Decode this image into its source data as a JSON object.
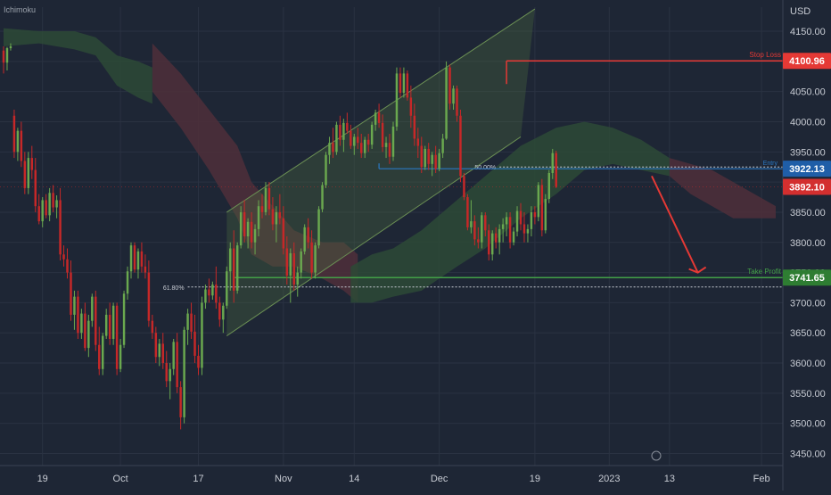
{
  "indicator_label": "Ichimoku",
  "currency": "USD",
  "colors": {
    "background": "#1e2635",
    "bull": "#6aa84f",
    "bear": "#c62828",
    "cloud_bull": "#2d4a36",
    "cloud_bear": "#4f2f3a",
    "channel": "#6a8e54",
    "stop": "#e53935",
    "take": "#43a047",
    "entry": "#2a79c4",
    "arrow": "#e53935",
    "axis_text": "#c8ccd4"
  },
  "chart_data": {
    "type": "candlestick",
    "ylim": [
      3430,
      4190
    ],
    "x_index_range": [
      0,
      219
    ],
    "y_ticks": [
      4150,
      4100,
      4050,
      4000,
      3950,
      3900,
      3850,
      3800,
      3750,
      3700,
      3650,
      3600,
      3550,
      3500,
      3450
    ],
    "x_ticks": [
      {
        "label": "19",
        "i": 11
      },
      {
        "label": "Oct",
        "i": 33
      },
      {
        "label": "17",
        "i": 55
      },
      {
        "label": "Nov",
        "i": 79
      },
      {
        "label": "14",
        "i": 99
      },
      {
        "label": "Dec",
        "i": 123
      },
      {
        "label": "19",
        "i": 150
      },
      {
        "label": "2023",
        "i": 171
      },
      {
        "label": "13",
        "i": 188
      },
      {
        "label": "Feb",
        "i": 214
      }
    ],
    "price_labels": [
      {
        "name": "stop",
        "value": "4100.96",
        "y": 4100.96
      },
      {
        "name": "entry",
        "value": "3922.13",
        "y": 3922.13
      },
      {
        "name": "last",
        "value": "3892.10",
        "y": 3892.1
      },
      {
        "name": "take",
        "value": "3741.65",
        "y": 3741.65
      }
    ],
    "levels": {
      "stop_loss": {
        "label": "Stop Loss",
        "value": 4100.96,
        "i_start": 142,
        "i_end": 214
      },
      "entry": {
        "label": "Entry",
        "value": 3922.13,
        "i_start": 106,
        "i_end": 214
      },
      "take_profit": {
        "label": "Take Profit",
        "value": 3741.65,
        "i_start": 65,
        "i_end": 214
      },
      "fib_618": {
        "label": "61.80%",
        "value": 3726,
        "i_start": 52,
        "i_end": 214
      },
      "fib_50": {
        "label": "50.00%",
        "value": 3925,
        "i_start": 140,
        "i_end": 214
      }
    },
    "channel": {
      "lower": [
        [
          63,
          3645
        ],
        [
          146,
          3975
        ]
      ],
      "upper": [
        [
          63,
          3850
        ],
        [
          150,
          4187
        ]
      ]
    },
    "projection_arrow": {
      "from": [
        183,
        3910
      ],
      "to": [
        196,
        3750
      ]
    },
    "candles": [
      [
        4118,
        4125,
        4080,
        4098
      ],
      [
        4098,
        4124,
        4085,
        4122
      ],
      [
        4122,
        4130,
        4118,
        4125
      ],
      [
        4010,
        4020,
        3940,
        3950
      ],
      [
        3950,
        3990,
        3935,
        3985
      ],
      [
        3985,
        4000,
        3925,
        3935
      ],
      [
        3935,
        3950,
        3880,
        3890
      ],
      [
        3890,
        3950,
        3880,
        3940
      ],
      [
        3940,
        3960,
        3905,
        3920
      ],
      [
        3920,
        3940,
        3850,
        3860
      ],
      [
        3860,
        3880,
        3830,
        3835
      ],
      [
        3835,
        3875,
        3825,
        3870
      ],
      [
        3870,
        3880,
        3840,
        3845
      ],
      [
        3845,
        3890,
        3835,
        3882
      ],
      [
        3882,
        3895,
        3850,
        3858
      ],
      [
        3858,
        3878,
        3840,
        3870
      ],
      [
        3870,
        3890,
        3770,
        3780
      ],
      [
        3780,
        3795,
        3760,
        3772
      ],
      [
        3772,
        3790,
        3740,
        3750
      ],
      [
        3750,
        3770,
        3670,
        3680
      ],
      [
        3680,
        3720,
        3655,
        3710
      ],
      [
        3710,
        3720,
        3640,
        3650
      ],
      [
        3650,
        3690,
        3640,
        3682
      ],
      [
        3682,
        3700,
        3620,
        3625
      ],
      [
        3625,
        3680,
        3610,
        3670
      ],
      [
        3670,
        3715,
        3660,
        3710
      ],
      [
        3710,
        3720,
        3620,
        3630
      ],
      [
        3630,
        3660,
        3580,
        3590
      ],
      [
        3590,
        3650,
        3580,
        3645
      ],
      [
        3645,
        3690,
        3640,
        3680
      ],
      [
        3680,
        3700,
        3630,
        3640
      ],
      [
        3640,
        3700,
        3630,
        3695
      ],
      [
        3695,
        3700,
        3580,
        3590
      ],
      [
        3590,
        3640,
        3585,
        3630
      ],
      [
        3630,
        3720,
        3625,
        3715
      ],
      [
        3715,
        3760,
        3705,
        3752
      ],
      [
        3752,
        3800,
        3740,
        3795
      ],
      [
        3795,
        3800,
        3750,
        3755
      ],
      [
        3755,
        3790,
        3740,
        3785
      ],
      [
        3785,
        3800,
        3750,
        3760
      ],
      [
        3760,
        3780,
        3740,
        3750
      ],
      [
        3750,
        3770,
        3660,
        3670
      ],
      [
        3670,
        3680,
        3640,
        3650
      ],
      [
        3650,
        3660,
        3600,
        3610
      ],
      [
        3610,
        3640,
        3595,
        3632
      ],
      [
        3632,
        3650,
        3590,
        3600
      ],
      [
        3600,
        3620,
        3560,
        3570
      ],
      [
        3570,
        3600,
        3540,
        3590
      ],
      [
        3590,
        3640,
        3580,
        3635
      ],
      [
        3635,
        3650,
        3550,
        3560
      ],
      [
        3560,
        3570,
        3490,
        3510
      ],
      [
        3510,
        3660,
        3500,
        3655
      ],
      [
        3655,
        3690,
        3630,
        3682
      ],
      [
        3682,
        3700,
        3640,
        3652
      ],
      [
        3652,
        3680,
        3600,
        3612
      ],
      [
        3612,
        3630,
        3580,
        3592
      ],
      [
        3592,
        3710,
        3580,
        3700
      ],
      [
        3700,
        3730,
        3690,
        3722
      ],
      [
        3722,
        3740,
        3700,
        3712
      ],
      [
        3712,
        3735,
        3705,
        3730
      ],
      [
        3730,
        3760,
        3690,
        3700
      ],
      [
        3700,
        3710,
        3660,
        3672
      ],
      [
        3672,
        3700,
        3650,
        3695
      ],
      [
        3695,
        3760,
        3690,
        3752
      ],
      [
        3752,
        3800,
        3720,
        3790
      ],
      [
        3790,
        3820,
        3700,
        3720
      ],
      [
        3720,
        3800,
        3715,
        3795
      ],
      [
        3795,
        3860,
        3790,
        3850
      ],
      [
        3850,
        3870,
        3800,
        3810
      ],
      [
        3810,
        3840,
        3790,
        3834
      ],
      [
        3834,
        3850,
        3790,
        3800
      ],
      [
        3800,
        3830,
        3780,
        3822
      ],
      [
        3822,
        3870,
        3810,
        3860
      ],
      [
        3860,
        3880,
        3840,
        3850
      ],
      [
        3850,
        3900,
        3845,
        3890
      ],
      [
        3890,
        3900,
        3845,
        3855
      ],
      [
        3855,
        3875,
        3820,
        3830
      ],
      [
        3830,
        3860,
        3800,
        3850
      ],
      [
        3850,
        3880,
        3830,
        3840
      ],
      [
        3840,
        3860,
        3780,
        3790
      ],
      [
        3790,
        3810,
        3730,
        3745
      ],
      [
        3745,
        3790,
        3700,
        3782
      ],
      [
        3782,
        3800,
        3720,
        3730
      ],
      [
        3730,
        3760,
        3710,
        3750
      ],
      [
        3750,
        3790,
        3740,
        3785
      ],
      [
        3785,
        3830,
        3780,
        3825
      ],
      [
        3825,
        3840,
        3790,
        3800
      ],
      [
        3800,
        3820,
        3740,
        3750
      ],
      [
        3750,
        3800,
        3740,
        3795
      ],
      [
        3795,
        3860,
        3790,
        3855
      ],
      [
        3855,
        3900,
        3850,
        3895
      ],
      [
        3895,
        3950,
        3890,
        3945
      ],
      [
        3945,
        3975,
        3930,
        3965
      ],
      [
        3965,
        3990,
        3940,
        3950
      ],
      [
        3950,
        4000,
        3945,
        3995
      ],
      [
        3995,
        4010,
        3960,
        3970
      ],
      [
        3970,
        4005,
        3950,
        3998
      ],
      [
        3998,
        4015,
        3980,
        3985
      ],
      [
        3985,
        3995,
        3955,
        3960
      ],
      [
        3960,
        3980,
        3945,
        3975
      ],
      [
        3975,
        3990,
        3955,
        3965
      ],
      [
        3965,
        3980,
        3940,
        3948
      ],
      [
        3948,
        3975,
        3940,
        3970
      ],
      [
        3970,
        3980,
        3950,
        3962
      ],
      [
        3962,
        4000,
        3955,
        3995
      ],
      [
        3995,
        4020,
        3985,
        4015
      ],
      [
        4015,
        4030,
        3990,
        3998
      ],
      [
        3998,
        4012,
        3950,
        3958
      ],
      [
        3958,
        3975,
        3940,
        3965
      ],
      [
        3965,
        3980,
        3930,
        3942
      ],
      [
        3942,
        4000,
        3935,
        3992
      ],
      [
        3992,
        4090,
        3985,
        4080
      ],
      [
        4080,
        4090,
        4040,
        4048
      ],
      [
        4048,
        4090,
        4040,
        4080
      ],
      [
        4080,
        4085,
        4035,
        4040
      ],
      [
        4040,
        4060,
        3990,
        4010
      ],
      [
        4010,
        4030,
        3960,
        3972
      ],
      [
        3972,
        3990,
        3940,
        3960
      ],
      [
        3960,
        3975,
        3915,
        3925
      ],
      [
        3925,
        3960,
        3920,
        3955
      ],
      [
        3955,
        3965,
        3920,
        3930
      ],
      [
        3930,
        3950,
        3910,
        3945
      ],
      [
        3945,
        3960,
        3915,
        3922
      ],
      [
        3922,
        3955,
        3918,
        3948
      ],
      [
        3948,
        3980,
        3940,
        3972
      ],
      [
        3972,
        4100,
        3970,
        4090
      ],
      [
        4090,
        4095,
        4020,
        4030
      ],
      [
        4030,
        4060,
        4020,
        4055
      ],
      [
        4055,
        4060,
        4000,
        4010
      ],
      [
        4010,
        4020,
        3900,
        3910
      ],
      [
        3910,
        3915,
        3870,
        3875
      ],
      [
        3875,
        3880,
        3820,
        3825
      ],
      [
        3825,
        3870,
        3815,
        3835
      ],
      [
        3835,
        3845,
        3795,
        3805
      ],
      [
        3805,
        3825,
        3790,
        3800
      ],
      [
        3800,
        3850,
        3790,
        3845
      ],
      [
        3845,
        3850,
        3810,
        3820
      ],
      [
        3820,
        3830,
        3770,
        3780
      ],
      [
        3780,
        3820,
        3770,
        3815
      ],
      [
        3815,
        3825,
        3790,
        3800
      ],
      [
        3800,
        3830,
        3780,
        3822
      ],
      [
        3822,
        3840,
        3800,
        3830
      ],
      [
        3830,
        3850,
        3810,
        3842
      ],
      [
        3842,
        3850,
        3790,
        3800
      ],
      [
        3800,
        3825,
        3795,
        3818
      ],
      [
        3818,
        3860,
        3810,
        3852
      ],
      [
        3852,
        3865,
        3820,
        3830
      ],
      [
        3830,
        3850,
        3800,
        3815
      ],
      [
        3815,
        3830,
        3800,
        3822
      ],
      [
        3822,
        3860,
        3810,
        3850
      ],
      [
        3850,
        3860,
        3830,
        3842
      ],
      [
        3842,
        3900,
        3835,
        3895
      ],
      [
        3895,
        3905,
        3810,
        3820
      ],
      [
        3820,
        3880,
        3815,
        3872
      ],
      [
        3872,
        3920,
        3865,
        3915
      ],
      [
        3915,
        3955,
        3905,
        3948
      ],
      [
        3948,
        3952,
        3890,
        3892
      ]
    ],
    "cloud_segments": [
      {
        "kind": "bear",
        "pts": [
          [
            42,
            4130,
            4050
          ],
          [
            50,
            4080,
            3990
          ],
          [
            58,
            4020,
            3920
          ],
          [
            66,
            3960,
            3840
          ],
          [
            70,
            3900,
            3780
          ],
          [
            76,
            3860,
            3760
          ],
          [
            82,
            3820,
            3760
          ],
          [
            90,
            3800,
            3740
          ],
          [
            96,
            3800,
            3720
          ],
          [
            100,
            3780,
            3700
          ]
        ]
      },
      {
        "kind": "bull",
        "pts": [
          [
            0,
            4155,
            4125
          ],
          [
            10,
            4150,
            4130
          ],
          [
            20,
            4150,
            4120
          ],
          [
            26,
            4140,
            4110
          ],
          [
            32,
            4110,
            4060
          ],
          [
            38,
            4100,
            4040
          ],
          [
            42,
            4090,
            4030
          ]
        ]
      },
      {
        "kind": "bull",
        "pts": [
          [
            98,
            3760,
            3700
          ],
          [
            104,
            3780,
            3700
          ],
          [
            110,
            3790,
            3710
          ],
          [
            118,
            3820,
            3720
          ],
          [
            128,
            3870,
            3760
          ],
          [
            136,
            3910,
            3790
          ],
          [
            146,
            3960,
            3840
          ],
          [
            156,
            3990,
            3880
          ],
          [
            164,
            4000,
            3920
          ],
          [
            172,
            3990,
            3930
          ],
          [
            180,
            3970,
            3920
          ],
          [
            188,
            3940,
            3910
          ]
        ]
      },
      {
        "kind": "bear",
        "pts": [
          [
            188,
            3940,
            3910
          ],
          [
            194,
            3930,
            3880
          ],
          [
            200,
            3920,
            3860
          ],
          [
            206,
            3900,
            3840
          ],
          [
            212,
            3880,
            3840
          ],
          [
            218,
            3860,
            3840
          ]
        ]
      }
    ]
  }
}
